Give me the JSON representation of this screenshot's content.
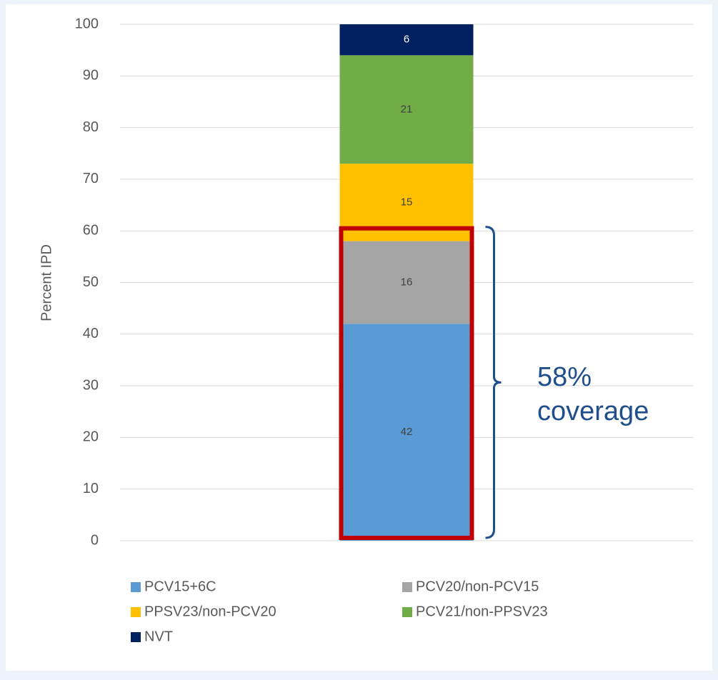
{
  "chart_data": {
    "type": "stacked_bar",
    "categories": [
      null
    ],
    "series": [
      {
        "name": "PCV15+6C",
        "color": "#5b9bd5",
        "values": [
          42
        ]
      },
      {
        "name": "PCV20/non-PCV15",
        "color": "#a5a5a5",
        "values": [
          16
        ]
      },
      {
        "name": "PPSV23/non-PCV20",
        "color": "#ffc000",
        "values": [
          15
        ]
      },
      {
        "name": "PCV21/non-PPSV23",
        "color": "#70ad47",
        "values": [
          21
        ]
      },
      {
        "name": "NVT",
        "color": "#002060",
        "values": [
          6
        ]
      }
    ],
    "y_label": "Percent IPD",
    "ylim": [
      0,
      100
    ],
    "yticks": [
      0,
      10,
      20,
      30,
      40,
      50,
      60,
      70,
      80,
      90,
      100
    ],
    "grid": true,
    "annotation": [
      "58%",
      "coverage"
    ],
    "highlight_color": "#c00000",
    "annotation_color": "#1f4e8c"
  }
}
